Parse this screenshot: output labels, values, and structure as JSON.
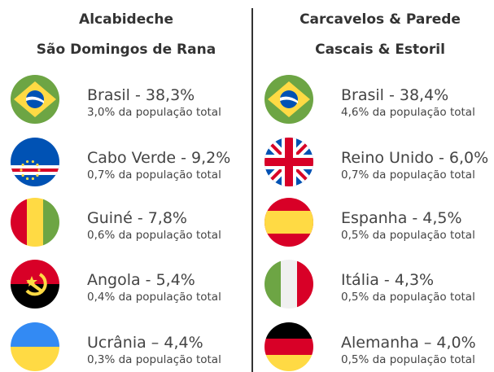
{
  "columns": [
    {
      "title_lines": [
        "Alcabideche",
        "São Domingos de Rana"
      ],
      "items": [
        {
          "country": "Brasil - 38,3%",
          "detail": "3,0% da população total"
        },
        {
          "country": "Cabo Verde - 9,2%",
          "detail": "0,7% da população total"
        },
        {
          "country": "Guiné - 7,8%",
          "detail": "0,6% da população total"
        },
        {
          "country": "Angola - 5,4%",
          "detail": "0,4% da população total"
        },
        {
          "country": "Ucrânia – 4,4%",
          "detail": "0,3% da população total"
        }
      ]
    },
    {
      "title_lines": [
        "Carcavelos & Parede",
        "Cascais & Estoril"
      ],
      "items": [
        {
          "country": "Brasil - 38,4%",
          "detail": "4,6% da população total"
        },
        {
          "country": "Reino Unido - 6,0%",
          "detail": "0,7% da população total"
        },
        {
          "country": "Espanha - 4,5%",
          "detail": "0,5% da população total"
        },
        {
          "country": "Itália - 4,3%",
          "detail": "0,5% da população total"
        },
        {
          "country": "Alemanha – 4,0%",
          "detail": "0,5% da população total"
        }
      ]
    }
  ]
}
